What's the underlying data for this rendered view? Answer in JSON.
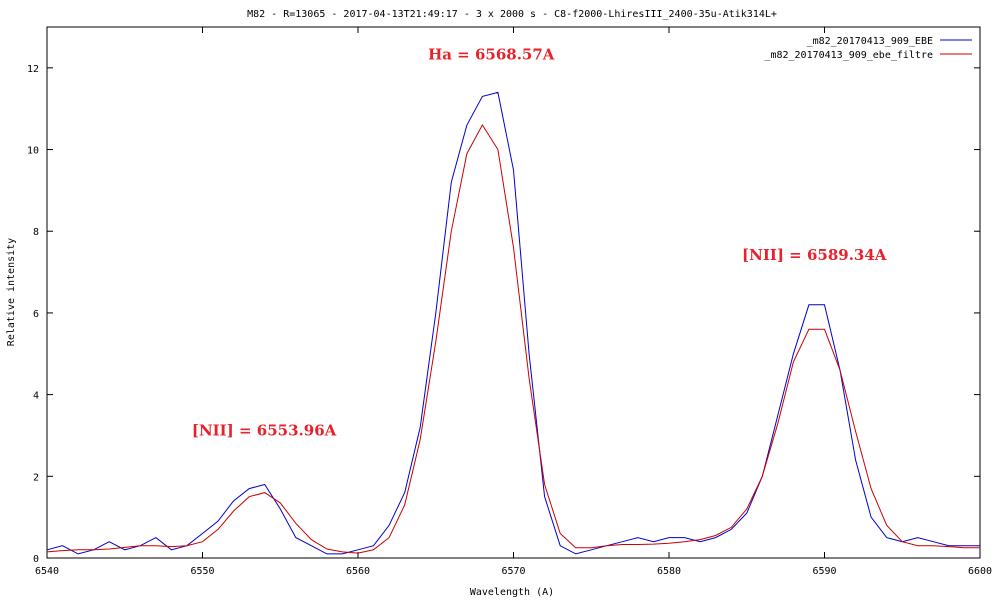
{
  "chart_data": {
    "type": "line",
    "title": "M82 - R=13065 - 2017-04-13T21:49:17 - 3 x 2000 s - C8-f2000-LhiresIII_2400-35u-Atik314L+",
    "xlabel": "Wavelength (A)",
    "ylabel": "Relative intensity",
    "xlim": [
      6540,
      6600
    ],
    "ylim": [
      0,
      13
    ],
    "x_ticks": [
      "6540",
      "6550",
      "6560",
      "6570",
      "6580",
      "6590",
      "6600"
    ],
    "y_ticks": [
      "0",
      "2",
      "4",
      "6",
      "8",
      "10",
      "12"
    ],
    "grid": false,
    "legend_position": "top-right",
    "series": [
      {
        "name": "_m82_20170413_909_EBE",
        "color": "#0000cc",
        "x": [
          6540,
          6541,
          6542,
          6543,
          6544,
          6545,
          6546,
          6547,
          6548,
          6549,
          6550,
          6551,
          6552,
          6553,
          6554,
          6555,
          6556,
          6557,
          6558,
          6559,
          6560,
          6561,
          6562,
          6563,
          6564,
          6565,
          6566,
          6567,
          6568,
          6569,
          6570,
          6571,
          6572,
          6573,
          6574,
          6575,
          6576,
          6577,
          6578,
          6579,
          6580,
          6581,
          6582,
          6583,
          6584,
          6585,
          6586,
          6587,
          6588,
          6589,
          6590,
          6591,
          6592,
          6593,
          6594,
          6595,
          6596,
          6597,
          6598,
          6599,
          6600
        ],
        "y": [
          0.2,
          0.3,
          0.1,
          0.2,
          0.4,
          0.2,
          0.3,
          0.5,
          0.2,
          0.3,
          0.6,
          0.9,
          1.4,
          1.7,
          1.8,
          1.2,
          0.5,
          0.3,
          0.1,
          0.1,
          0.2,
          0.3,
          0.8,
          1.6,
          3.2,
          6.0,
          9.2,
          10.6,
          11.3,
          11.4,
          9.5,
          5.0,
          1.5,
          0.3,
          0.1,
          0.2,
          0.3,
          0.4,
          0.5,
          0.4,
          0.5,
          0.5,
          0.4,
          0.5,
          0.7,
          1.1,
          2.0,
          3.5,
          5.0,
          6.2,
          6.2,
          4.6,
          2.4,
          1.0,
          0.5,
          0.4,
          0.5,
          0.4,
          0.3,
          0.3,
          0.3
        ]
      },
      {
        "name": "_m82_20170413_909_ebe_filtre",
        "color": "#cc0000",
        "x": [
          6540,
          6541,
          6542,
          6543,
          6544,
          6545,
          6546,
          6547,
          6548,
          6549,
          6550,
          6551,
          6552,
          6553,
          6554,
          6555,
          6556,
          6557,
          6558,
          6559,
          6560,
          6561,
          6562,
          6563,
          6564,
          6565,
          6566,
          6567,
          6568,
          6569,
          6570,
          6571,
          6572,
          6573,
          6574,
          6575,
          6576,
          6577,
          6578,
          6579,
          6580,
          6581,
          6582,
          6583,
          6584,
          6585,
          6586,
          6587,
          6588,
          6589,
          6590,
          6591,
          6592,
          6593,
          6594,
          6595,
          6596,
          6597,
          6598,
          6599,
          6600
        ],
        "y": [
          0.15,
          0.18,
          0.2,
          0.2,
          0.22,
          0.26,
          0.3,
          0.3,
          0.28,
          0.3,
          0.4,
          0.7,
          1.15,
          1.5,
          1.6,
          1.35,
          0.85,
          0.45,
          0.22,
          0.15,
          0.12,
          0.2,
          0.5,
          1.3,
          2.9,
          5.3,
          8.0,
          9.9,
          10.6,
          10.0,
          7.6,
          4.4,
          1.8,
          0.6,
          0.25,
          0.25,
          0.3,
          0.33,
          0.33,
          0.34,
          0.36,
          0.4,
          0.45,
          0.55,
          0.75,
          1.2,
          2.0,
          3.3,
          4.8,
          5.6,
          5.6,
          4.6,
          3.1,
          1.7,
          0.8,
          0.4,
          0.3,
          0.3,
          0.28,
          0.25,
          0.25
        ]
      }
    ],
    "annotations": [
      {
        "text": "Ha = 6568.57A",
        "x": 6568.57,
        "y": 12.2
      },
      {
        "text": "[NII] = 6589.34A",
        "x": 6589.34,
        "y": 7.3
      },
      {
        "text": "[NII] = 6553.96A",
        "x": 6553.96,
        "y": 3.0
      }
    ],
    "annotation_color": "#e8212a"
  }
}
